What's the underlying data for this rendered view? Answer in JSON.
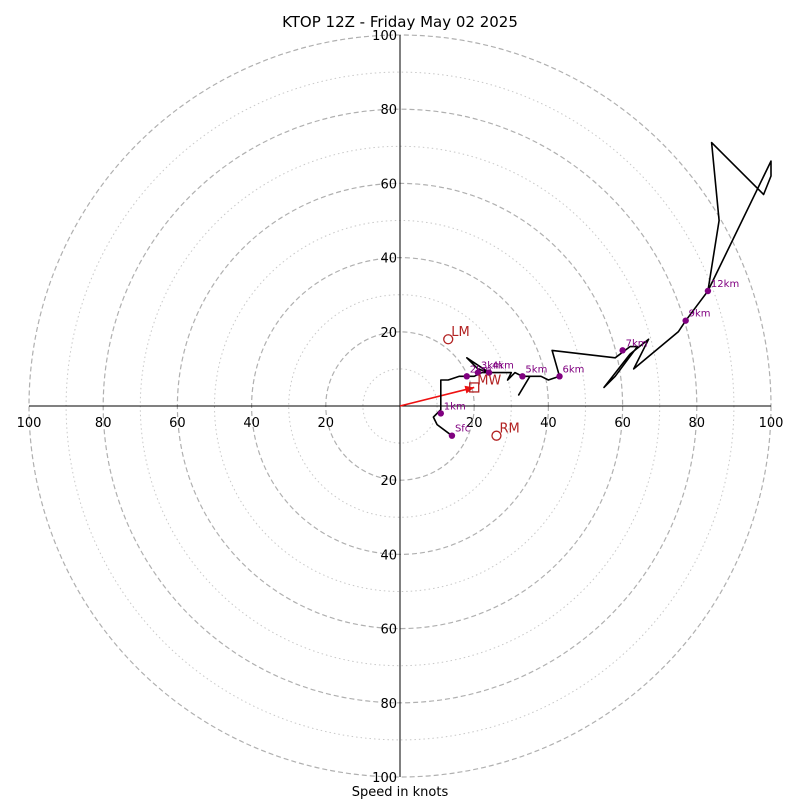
{
  "chart_data": {
    "type": "hodograph",
    "title": "KTOP 12Z - Friday May 02 2025",
    "xlabel": "Speed in knots",
    "ylabel": "",
    "units": "knots",
    "xlim": [
      -100,
      100
    ],
    "ylim": [
      -100,
      100
    ],
    "ring_major": [
      20,
      40,
      60,
      80,
      100
    ],
    "ring_minor": [
      10,
      30,
      50,
      70,
      90
    ],
    "tick_labels": [
      "20",
      "40",
      "60",
      "80",
      "100"
    ],
    "grid": true,
    "colors": {
      "trace": "#000000",
      "height_marker": "#800080",
      "motion": "#b22222",
      "shear_vector": "#ee1111",
      "grid": "#b0b0b0"
    },
    "trace": [
      [
        14,
        -8
      ],
      [
        10,
        -5
      ],
      [
        9,
        -3
      ],
      [
        11,
        -1
      ],
      [
        11,
        7
      ],
      [
        13,
        7
      ],
      [
        16,
        8
      ],
      [
        18,
        8
      ],
      [
        20,
        8
      ],
      [
        22,
        9
      ],
      [
        24,
        9
      ],
      [
        21,
        11
      ],
      [
        18,
        13
      ],
      [
        21,
        10
      ],
      [
        24,
        9
      ],
      [
        27,
        9
      ],
      [
        30,
        9
      ],
      [
        29,
        7
      ],
      [
        31,
        9
      ],
      [
        33,
        8
      ],
      [
        35,
        8
      ],
      [
        32,
        3
      ],
      [
        35,
        8
      ],
      [
        38,
        8
      ],
      [
        40,
        7
      ],
      [
        43,
        8
      ],
      [
        41,
        15
      ],
      [
        58,
        13
      ],
      [
        62,
        16
      ],
      [
        64,
        16
      ],
      [
        58,
        8
      ],
      [
        55,
        5
      ],
      [
        62,
        14
      ],
      [
        67,
        18
      ],
      [
        63,
        10
      ],
      [
        75,
        20
      ],
      [
        77,
        23
      ],
      [
        80,
        27
      ],
      [
        83,
        31
      ],
      [
        100,
        66
      ],
      [
        100,
        62
      ],
      [
        98,
        57
      ],
      [
        84,
        71
      ],
      [
        86,
        50
      ],
      [
        83,
        31
      ]
    ],
    "height_markers": [
      {
        "label": "Sfc",
        "u": 14,
        "v": -8
      },
      {
        "label": "1km",
        "u": 11,
        "v": -2
      },
      {
        "label": "2km",
        "u": 18,
        "v": 8
      },
      {
        "label": "3km",
        "u": 21,
        "v": 9
      },
      {
        "label": "4km",
        "u": 24,
        "v": 9
      },
      {
        "label": "5km",
        "u": 33,
        "v": 8
      },
      {
        "label": "6km",
        "u": 43,
        "v": 8
      },
      {
        "label": "7km",
        "u": 60,
        "v": 15
      },
      {
        "label": "9km",
        "u": 77,
        "v": 23
      },
      {
        "label": "12km",
        "u": 83,
        "v": 31
      }
    ],
    "storm_motion": [
      {
        "label": "LM",
        "u": 13,
        "v": 18
      },
      {
        "label": "RM",
        "u": 26,
        "v": -8
      }
    ],
    "mean_wind": {
      "label": "MW",
      "u": 20,
      "v": 5
    },
    "shear_vector": {
      "from": [
        0,
        0
      ],
      "to": [
        20,
        5
      ]
    }
  }
}
